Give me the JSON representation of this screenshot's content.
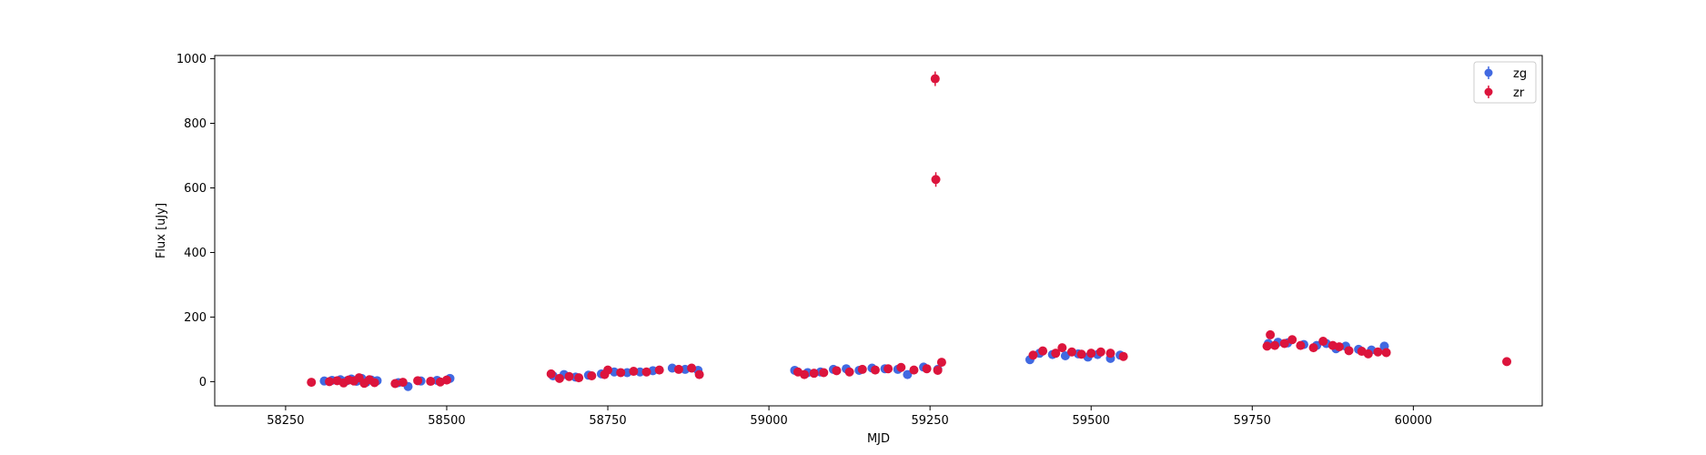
{
  "chart_data": {
    "type": "scatter",
    "title": "",
    "xlabel": "MJD",
    "ylabel": "Flux [uJy]",
    "xlim": [
      58140,
      60200
    ],
    "ylim": [
      -75,
      1010
    ],
    "xticks": [
      58250,
      58500,
      58750,
      59000,
      59250,
      59500,
      59750,
      60000
    ],
    "yticks": [
      0,
      200,
      400,
      600,
      800,
      1000
    ],
    "grid": false,
    "legend_position": "top-right",
    "series": [
      {
        "name": "zg",
        "color": "#4169e1",
        "points": [
          [
            58310,
            2
          ],
          [
            58322,
            4
          ],
          [
            58335,
            6
          ],
          [
            58345,
            3
          ],
          [
            58352,
            8
          ],
          [
            58360,
            1
          ],
          [
            58368,
            10
          ],
          [
            58375,
            -2
          ],
          [
            58383,
            5
          ],
          [
            58392,
            3
          ],
          [
            58425,
            -3
          ],
          [
            58440,
            -15
          ],
          [
            58460,
            2
          ],
          [
            58485,
            4
          ],
          [
            58505,
            10
          ],
          [
            58665,
            18
          ],
          [
            58682,
            22
          ],
          [
            58700,
            14
          ],
          [
            58720,
            20
          ],
          [
            58740,
            24
          ],
          [
            58760,
            30
          ],
          [
            58780,
            28
          ],
          [
            58800,
            30
          ],
          [
            58820,
            34
          ],
          [
            58850,
            42
          ],
          [
            58870,
            38
          ],
          [
            58890,
            35
          ],
          [
            59040,
            35
          ],
          [
            59060,
            28
          ],
          [
            59080,
            30
          ],
          [
            59100,
            38
          ],
          [
            59120,
            40
          ],
          [
            59140,
            35
          ],
          [
            59160,
            42
          ],
          [
            59180,
            40
          ],
          [
            59200,
            38
          ],
          [
            59215,
            22
          ],
          [
            59240,
            45
          ],
          [
            59262,
            38
          ],
          [
            59405,
            68
          ],
          [
            59420,
            88
          ],
          [
            59440,
            84
          ],
          [
            59460,
            80
          ],
          [
            59480,
            86
          ],
          [
            59495,
            76
          ],
          [
            59510,
            84
          ],
          [
            59530,
            72
          ],
          [
            59545,
            82
          ],
          [
            59775,
            118
          ],
          [
            59790,
            122
          ],
          [
            59805,
            120
          ],
          [
            59830,
            115
          ],
          [
            59850,
            112
          ],
          [
            59865,
            118
          ],
          [
            59880,
            102
          ],
          [
            59895,
            110
          ],
          [
            59915,
            100
          ],
          [
            59935,
            98
          ],
          [
            59955,
            110
          ]
        ]
      },
      {
        "name": "zr",
        "color": "#dc143c",
        "points": [
          [
            58290,
            -2
          ],
          [
            58318,
            0
          ],
          [
            58330,
            3
          ],
          [
            58340,
            -4
          ],
          [
            58348,
            5
          ],
          [
            58356,
            2
          ],
          [
            58364,
            12
          ],
          [
            58372,
            -5
          ],
          [
            58380,
            6
          ],
          [
            58388,
            -3
          ],
          [
            58420,
            -6
          ],
          [
            58432,
            -2
          ],
          [
            58455,
            3
          ],
          [
            58475,
            1
          ],
          [
            58490,
            -1
          ],
          [
            58500,
            5
          ],
          [
            58662,
            24
          ],
          [
            58675,
            10
          ],
          [
            58690,
            16
          ],
          [
            58705,
            12
          ],
          [
            58725,
            18
          ],
          [
            58745,
            22
          ],
          [
            58750,
            36
          ],
          [
            58770,
            28
          ],
          [
            58790,
            32
          ],
          [
            58810,
            30
          ],
          [
            58830,
            36
          ],
          [
            58860,
            38
          ],
          [
            58880,
            42
          ],
          [
            58892,
            22
          ],
          [
            59045,
            30
          ],
          [
            59055,
            22
          ],
          [
            59070,
            26
          ],
          [
            59085,
            28
          ],
          [
            59105,
            34
          ],
          [
            59125,
            30
          ],
          [
            59145,
            38
          ],
          [
            59165,
            36
          ],
          [
            59185,
            40
          ],
          [
            59205,
            44
          ],
          [
            59225,
            36
          ],
          [
            59245,
            40
          ],
          [
            59258,
            938
          ],
          [
            59259,
            626
          ],
          [
            59262,
            35
          ],
          [
            59268,
            60
          ],
          [
            59410,
            82
          ],
          [
            59425,
            95
          ],
          [
            59445,
            88
          ],
          [
            59455,
            105
          ],
          [
            59470,
            92
          ],
          [
            59485,
            85
          ],
          [
            59500,
            88
          ],
          [
            59515,
            92
          ],
          [
            59530,
            88
          ],
          [
            59550,
            78
          ],
          [
            59773,
            110
          ],
          [
            59778,
            145
          ],
          [
            59785,
            112
          ],
          [
            59800,
            118
          ],
          [
            59812,
            130
          ],
          [
            59825,
            112
          ],
          [
            59845,
            105
          ],
          [
            59860,
            125
          ],
          [
            59875,
            112
          ],
          [
            59885,
            108
          ],
          [
            59900,
            96
          ],
          [
            59920,
            94
          ],
          [
            59930,
            86
          ],
          [
            59945,
            92
          ],
          [
            59958,
            90
          ],
          [
            60145,
            62
          ]
        ]
      }
    ]
  }
}
